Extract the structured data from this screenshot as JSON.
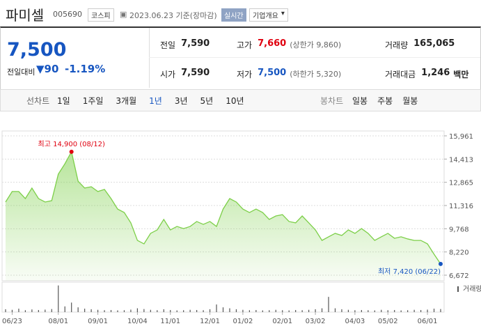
{
  "header": {
    "name": "파미셀",
    "code": "005690",
    "market": "코스피",
    "date": "2023.06.23 기준(장마감)",
    "realtime": "실시간",
    "overview": "기업개요"
  },
  "quote": {
    "price": "7,500",
    "change_label": "전일대비",
    "change": "90",
    "change_pct": "-1.19%"
  },
  "stats": [
    {
      "label": "전일",
      "value": "7,590"
    },
    {
      "label": "고가",
      "value": "7,660",
      "note": "(상한가 9,860)"
    },
    {
      "label": "거래량",
      "value": "165,065"
    },
    {
      "label": "시가",
      "value": "7,590"
    },
    {
      "label": "저가",
      "value": "7,500",
      "note": "(하한가 5,320)"
    },
    {
      "label": "거래대금",
      "value": "1,246",
      "unit": "백만"
    }
  ],
  "tabs": {
    "line_label": "선차트",
    "line_periods": [
      "1일",
      "1주일",
      "3개월",
      "1년",
      "3년",
      "5년",
      "10년"
    ],
    "selected": 3,
    "candle_label": "봉차트",
    "candle_periods": [
      "일봉",
      "주봉",
      "월봉"
    ]
  },
  "chart_data": {
    "type": "line",
    "color": "#7ccf48",
    "categories": [
      null,
      "06/23",
      null,
      null,
      null,
      null,
      null,
      null,
      "08/01",
      null,
      null,
      null,
      null,
      null,
      "09/01",
      null,
      null,
      null,
      null,
      null,
      "10/04",
      null,
      null,
      null,
      null,
      "11/01",
      null,
      null,
      null,
      null,
      null,
      "12/01",
      null,
      null,
      null,
      null,
      "01/02",
      null,
      null,
      null,
      null,
      null,
      "02/01",
      null,
      null,
      null,
      null,
      "03/02",
      null,
      null,
      null,
      null,
      null,
      "04/03",
      null,
      null,
      null,
      null,
      "05/02",
      null,
      null,
      null,
      null,
      null,
      "06/01",
      null,
      null
    ],
    "values": [
      11550,
      12250,
      12250,
      11780,
      12480,
      11780,
      11550,
      11640,
      13410,
      14100,
      14900,
      12940,
      12480,
      12570,
      12250,
      12390,
      11780,
      11080,
      10850,
      10160,
      8990,
      8760,
      9460,
      9690,
      10390,
      9690,
      9920,
      9780,
      9920,
      10250,
      10060,
      10250,
      9920,
      11080,
      11780,
      11550,
      11080,
      10850,
      11080,
      10850,
      10390,
      10620,
      10710,
      10250,
      10160,
      10620,
      10160,
      9690,
      8990,
      9230,
      9460,
      9320,
      9690,
      9460,
      9780,
      9460,
      8990,
      9230,
      9460,
      9130,
      9230,
      9090,
      8990,
      8990,
      8760,
      8070,
      7420
    ],
    "ylim": [
      6672,
      15961
    ],
    "yticks": [
      {
        "value": 6672,
        "label": "6,672"
      },
      {
        "value": 8220,
        "label": "8,220"
      },
      {
        "value": 9768,
        "label": "9,768"
      },
      {
        "value": 11316,
        "label": "11,316"
      },
      {
        "value": 12865,
        "label": "12,865"
      },
      {
        "value": 14413,
        "label": "14,413"
      },
      {
        "value": 15961,
        "label": "15,961"
      }
    ],
    "grid": true,
    "annotations": {
      "high": "최고 14,900 (08/12)",
      "low": "최저 7,420 (06/22)"
    },
    "volume": {
      "name": "거래량",
      "color": "#555555",
      "ylim": [
        0,
        1500000
      ],
      "values": [
        150000,
        120000,
        180000,
        100000,
        140000,
        110000,
        130000,
        160000,
        1400000,
        300000,
        500000,
        250000,
        180000,
        150000,
        120000,
        100000,
        110000,
        90000,
        100000,
        130000,
        200000,
        160000,
        120000,
        100000,
        150000,
        110000,
        90000,
        100000,
        120000,
        110000,
        100000,
        150000,
        400000,
        250000,
        200000,
        150000,
        120000,
        100000,
        110000,
        90000,
        100000,
        120000,
        100000,
        90000,
        110000,
        100000,
        120000,
        150000,
        200000,
        800000,
        200000,
        150000,
        120000,
        100000,
        110000,
        100000,
        90000,
        120000,
        100000,
        110000,
        90000,
        100000,
        120000,
        110000,
        130000,
        180000,
        160000
      ]
    }
  }
}
